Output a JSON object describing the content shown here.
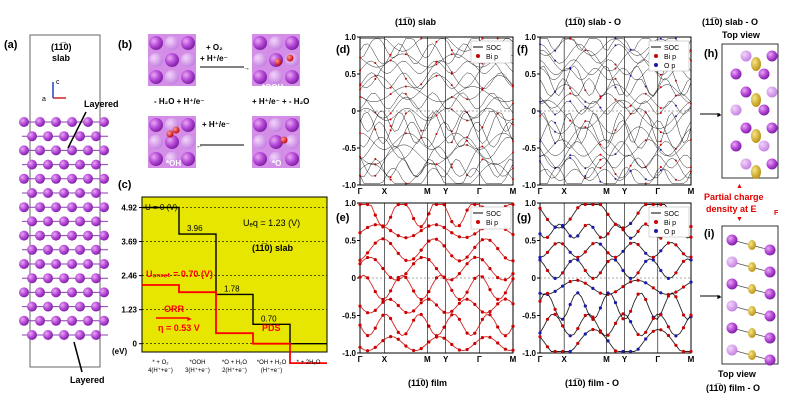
{
  "panel_letters": [
    "(a)",
    "(b)",
    "(c)",
    "(d)",
    "(e)",
    "(f)",
    "(g)",
    "(h)",
    "(i)"
  ],
  "panel_a": {
    "title_line1": "(11̅0)",
    "title_line2": "slab",
    "axis_c": "c",
    "axis_a": "a",
    "label_top": "Layered",
    "label_bottom": "Layered"
  },
  "panel_b": {
    "step1_line1": "+ O₂",
    "step1_line2": "+ H⁺/e⁻",
    "step2": "+ H⁺/e⁻ + - H₂O",
    "step3": "+ H⁺/e⁻",
    "step4": "- H₂O + H⁺/e⁻",
    "label_ooh": "*OOH",
    "label_o": "*O",
    "label_oh": "*OH"
  },
  "panel_c": {
    "yticks": [
      "4.92",
      "3.69",
      "2.46",
      "1.23",
      "0"
    ],
    "ylabel": "(eV)",
    "xticks": [
      {
        "l1": "* + O₂",
        "l2": "4(H⁺+e⁻)"
      },
      {
        "l1": "*OOH",
        "l2": "3(H⁺+e⁻)"
      },
      {
        "l1": "*O + H₂O",
        "l2": "2(H⁺+e⁻)"
      },
      {
        "l1": "*OH + H₂O",
        "l2": "(H⁺+e⁻)"
      },
      {
        "l1": "* + 2H₂O",
        "l2": ""
      }
    ],
    "u0": "U = 0 (V)",
    "ueq": "Uₑq = 1.23 (V)",
    "slab": "(11̅0) slab",
    "uonset": "Uₒₙₛₑₜ = 0.70 (V)",
    "orr": "ORR",
    "eta": "η = 0.53 V",
    "pds": "PDS",
    "bg_color": "#e6e600",
    "line_black": "#000000",
    "line_red": "#ff0000"
  },
  "chart_data": [
    {
      "type": "line",
      "panel": "(c)",
      "title": "",
      "ylabel": "(eV)",
      "ylim": [
        -0.3,
        5.3
      ],
      "categories": [
        "* + O₂ 4(H⁺+e⁻)",
        "*OOH 3(H⁺+e⁻)",
        "*O + H₂O 2(H⁺+e⁻)",
        "*OH + H₂O (H⁺+e⁻)",
        "* + 2H₂O"
      ],
      "series": [
        {
          "name": "U = 0 (V)",
          "values": [
            4.92,
            3.96,
            1.78,
            0.7,
            0
          ]
        },
        {
          "name": "Uₒₙₛₑₜ = 0.70 (V)",
          "values": [
            2.12,
            1.86,
            0.38,
            0.0,
            -0.7
          ]
        }
      ],
      "data_labels": [
        "3.96",
        "1.78",
        "0.70"
      ],
      "annotations": [
        "Uₑq = 1.23 (V)",
        "(11̅0) slab",
        "ORR",
        "η = 0.53 V",
        "PDS"
      ]
    }
  ],
  "bands": {
    "yticks": [
      "1.0",
      "0.5",
      "0",
      "-0.5",
      "-1.0"
    ],
    "kpoints": [
      "Γ",
      "X",
      "M",
      "Y",
      "Γ",
      "M"
    ],
    "d_title": "(11̅0) slab",
    "f_title": "(11̅0) slab - O",
    "e_caption": "(11̅0) film",
    "g_caption": "(11̅0) film - O",
    "legend_soc": "SOC",
    "legend_bip": "Bi p",
    "legend_op": "O p",
    "color_bi": "#cc0000",
    "color_o": "#1a1aaa"
  },
  "panel_h": {
    "title_line1": "(11̅0) slab - O",
    "title_line2": "Top view"
  },
  "panel_i": {
    "top_label": "Top view",
    "caption": "(11̅0) film - O"
  },
  "partial_charge": {
    "line1": "Partial charge",
    "line2": "density at E",
    "sub": "F",
    "color": "#e00000"
  }
}
